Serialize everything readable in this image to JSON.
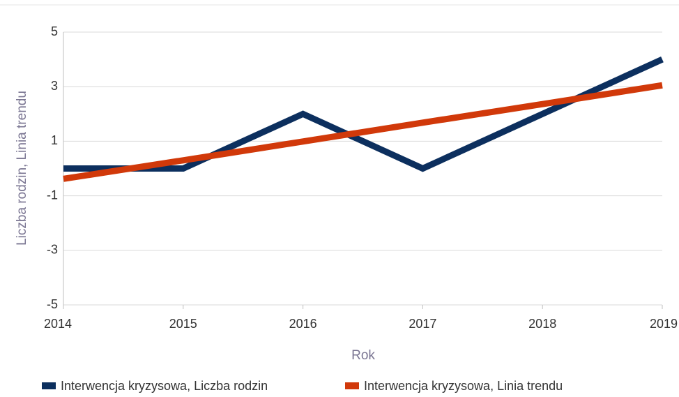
{
  "chart_data": {
    "type": "line",
    "x": [
      2014,
      2015,
      2016,
      2017,
      2018,
      2019
    ],
    "series": [
      {
        "name": "Interwencja kryzysowa, Liczba rodzin",
        "color": "#0c2f5e",
        "values": [
          0,
          0,
          2,
          0,
          2,
          4
        ]
      },
      {
        "name": "Interwencja kryzysowa, Linia trendu",
        "color": "#d1390a",
        "values": [
          -0.38,
          0.3,
          0.99,
          1.68,
          2.36,
          3.05
        ]
      }
    ],
    "xlabel": "Rok",
    "ylabel": "Liczba rodzin, Linia trendu",
    "xlim": [
      2014,
      2019
    ],
    "xticks": [
      2014,
      2015,
      2016,
      2017,
      2018,
      2019
    ],
    "ylim": [
      -5,
      5
    ],
    "yticks": [
      -5,
      -3,
      -1,
      1,
      3,
      5
    ],
    "grid": true,
    "legend": "bottom"
  }
}
